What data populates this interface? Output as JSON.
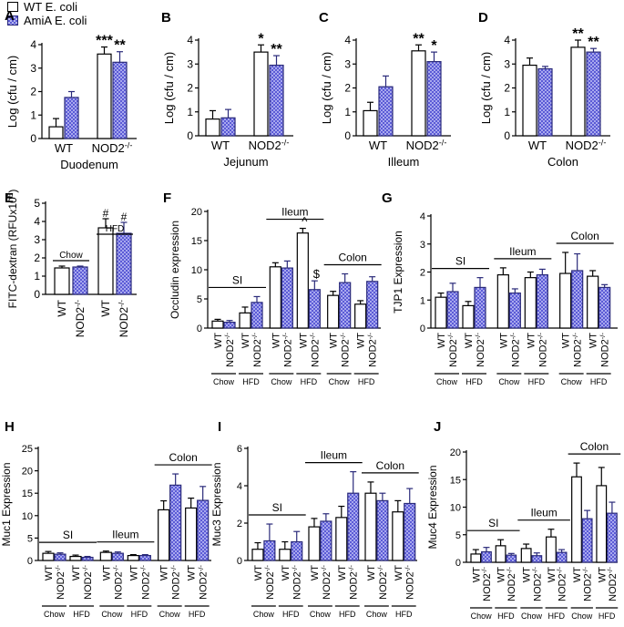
{
  "legend": {
    "wt_label": "WT E. coli",
    "amia_label": "AmiA E. coli"
  },
  "colors": {
    "wt_fill": "#ffffff",
    "amia_fill": "#5b5bd6",
    "amia_stroke": "#2a2a7a",
    "axis": "#000000"
  },
  "chart_data": [
    {
      "id": "A",
      "panel_label": "A",
      "type": "bar",
      "xlabel": "Duodenum",
      "ylabel": "Log (cfu / cm)",
      "ylim": [
        0,
        4
      ],
      "yticks": [
        "0",
        "1",
        "2",
        "3",
        "4"
      ],
      "categories": [
        "WT",
        "NOD2-/-"
      ],
      "series_names": [
        "WT E. coli",
        "AmiA E. coli"
      ],
      "values": [
        [
          0.5,
          1.75
        ],
        [
          3.6,
          3.25
        ]
      ],
      "errors": [
        [
          0.35,
          0.25
        ],
        [
          0.3,
          0.45
        ]
      ],
      "marks": [
        [
          "",
          ""
        ],
        [
          "***",
          "**"
        ]
      ]
    },
    {
      "id": "B",
      "panel_label": "B",
      "type": "bar",
      "xlabel": "Jejunum",
      "ylabel": "Log (cfu / cm)",
      "ylim": [
        0,
        4
      ],
      "yticks": [
        "0",
        "1",
        "2",
        "3",
        "4"
      ],
      "categories": [
        "WT",
        "NOD2-/-"
      ],
      "series_names": [
        "WT E. coli",
        "AmiA E. coli"
      ],
      "values": [
        [
          0.7,
          0.75
        ],
        [
          3.5,
          2.95
        ]
      ],
      "errors": [
        [
          0.35,
          0.35
        ],
        [
          0.3,
          0.4
        ]
      ],
      "marks": [
        [
          "",
          ""
        ],
        [
          "*",
          "**"
        ]
      ]
    },
    {
      "id": "C",
      "panel_label": "C",
      "type": "bar",
      "xlabel": "Illeum",
      "ylabel": "Log (cfu / cm)",
      "ylim": [
        0,
        4
      ],
      "yticks": [
        "0",
        "1",
        "2",
        "3",
        "4"
      ],
      "categories": [
        "WT",
        "NOD2-/-"
      ],
      "series_names": [
        "WT E. coli",
        "AmiA E. coli"
      ],
      "values": [
        [
          1.05,
          2.05
        ],
        [
          3.55,
          3.1
        ]
      ],
      "errors": [
        [
          0.35,
          0.45
        ],
        [
          0.25,
          0.4
        ]
      ],
      "marks": [
        [
          "",
          ""
        ],
        [
          "**",
          "*"
        ]
      ]
    },
    {
      "id": "D",
      "panel_label": "D",
      "type": "bar",
      "xlabel": "Colon",
      "ylabel": "Log (cfu / cm)",
      "ylim": [
        0,
        4
      ],
      "yticks": [
        "0",
        "1",
        "2",
        "3",
        "4"
      ],
      "categories": [
        "WT",
        "NOD2-/-"
      ],
      "series_names": [
        "WT E. coli",
        "AmiA E. coli"
      ],
      "values": [
        [
          2.95,
          2.8
        ],
        [
          3.7,
          3.5
        ]
      ],
      "errors": [
        [
          0.3,
          0.1
        ],
        [
          0.3,
          0.15
        ]
      ],
      "marks": [
        [
          "",
          ""
        ],
        [
          "**",
          "**"
        ]
      ]
    },
    {
      "id": "E",
      "panel_label": "E",
      "type": "bar",
      "ylabel": "FITC-dextran (RFUx10^5)",
      "ylim": [
        0,
        5
      ],
      "yticks": [
        "0",
        "1",
        "2",
        "3",
        "4",
        "5"
      ],
      "categories": [
        "WT",
        "NOD2-/-",
        "WT",
        "NOD2-/-"
      ],
      "groups": [
        {
          "label": "Chow",
          "members": [
            0,
            1
          ]
        },
        {
          "label": "HFD",
          "members": [
            2,
            3
          ]
        }
      ],
      "values": [
        1.45,
        1.5,
        3.65,
        3.35
      ],
      "errors": [
        0.1,
        0.05,
        0.5,
        0.6
      ],
      "bar_style": [
        "wt",
        "ami",
        "wt",
        "ami"
      ],
      "marks": [
        "",
        "",
        "#",
        "#"
      ]
    },
    {
      "id": "F",
      "panel_label": "F",
      "type": "bar",
      "ylabel": "Occludin expression",
      "ylim": [
        0,
        20
      ],
      "yticks": [
        "0",
        "5",
        "10",
        "15",
        "20"
      ],
      "regions": [
        "SI",
        "Ileum",
        "Colon"
      ],
      "diets": [
        "Chow",
        "HFD"
      ],
      "bar_labels": [
        "WT",
        "NOD2-/-",
        "WT",
        "NOD2-/-"
      ],
      "values": [
        [
          1.2,
          1.0,
          2.6,
          4.4
        ],
        [
          10.5,
          10.3,
          16.3,
          6.6
        ],
        [
          5.6,
          7.8,
          4.1,
          8.0
        ]
      ],
      "errors": [
        [
          0.3,
          0.3,
          1.0,
          1.0
        ],
        [
          0.7,
          1.2,
          0.8,
          1.5
        ],
        [
          0.7,
          1.5,
          0.6,
          0.8
        ]
      ],
      "marks": [
        [
          "",
          "",
          "",
          ""
        ],
        [
          "",
          "",
          "^",
          "$"
        ],
        [
          "",
          "",
          "",
          ""
        ]
      ]
    },
    {
      "id": "G",
      "panel_label": "G",
      "type": "bar",
      "ylabel": "TJP1 Expression",
      "ylim": [
        0,
        4
      ],
      "yticks": [
        "0",
        "1",
        "2",
        "3",
        "4"
      ],
      "regions": [
        "SI",
        "Ileum",
        "Colon"
      ],
      "diets": [
        "Chow",
        "HFD"
      ],
      "bar_labels": [
        "WT",
        "NOD2-/-",
        "WT",
        "NOD2-/-"
      ],
      "values": [
        [
          1.1,
          1.3,
          0.8,
          1.45
        ],
        [
          1.9,
          1.25,
          1.8,
          1.9
        ],
        [
          1.95,
          2.05,
          1.85,
          1.45
        ]
      ],
      "errors": [
        [
          0.15,
          0.3,
          0.15,
          0.35
        ],
        [
          0.25,
          0.15,
          0.2,
          0.2
        ],
        [
          0.75,
          0.6,
          0.2,
          0.1
        ]
      ],
      "marks": [
        [
          "",
          "",
          "",
          ""
        ],
        [
          "",
          "",
          "",
          ""
        ],
        [
          "",
          "",
          "",
          ""
        ]
      ]
    },
    {
      "id": "H",
      "panel_label": "H",
      "type": "bar",
      "ylabel": "Muc1 Expression",
      "ylim": [
        0,
        25
      ],
      "yticks": [
        "0",
        "5",
        "10",
        "15",
        "20",
        "25"
      ],
      "regions": [
        "SI",
        "Ileum",
        "Colon"
      ],
      "diets": [
        "Chow",
        "HFD"
      ],
      "bar_labels": [
        "WT",
        "NOD2-/-",
        "WT",
        "NOD2-/-"
      ],
      "values": [
        [
          1.6,
          1.4,
          0.9,
          0.7
        ],
        [
          1.8,
          1.6,
          1.1,
          1.1
        ],
        [
          11.3,
          16.8,
          11.7,
          13.4
        ]
      ],
      "errors": [
        [
          0.4,
          0.3,
          0.3,
          0.2
        ],
        [
          0.3,
          0.3,
          0.2,
          0.2
        ],
        [
          2.0,
          2.5,
          2.2,
          3.1
        ]
      ],
      "marks": [
        [
          "",
          "",
          "",
          ""
        ],
        [
          "",
          "",
          "",
          ""
        ],
        [
          "",
          "",
          "",
          ""
        ]
      ]
    },
    {
      "id": "I",
      "panel_label": "I",
      "type": "bar",
      "ylabel": "Muc3 Expression",
      "ylim": [
        0,
        6
      ],
      "yticks": [
        "0",
        "2",
        "4",
        "6"
      ],
      "regions": [
        "SI",
        "Ileum",
        "Colon"
      ],
      "diets": [
        "Chow",
        "HFD"
      ],
      "bar_labels": [
        "WT",
        "NOD2-/-",
        "WT",
        "NOD2-/-"
      ],
      "values": [
        [
          0.6,
          1.05,
          0.6,
          1.0
        ],
        [
          1.8,
          2.1,
          2.3,
          3.6
        ],
        [
          3.6,
          3.2,
          2.6,
          3.05
        ]
      ],
      "errors": [
        [
          0.35,
          0.9,
          0.4,
          0.55
        ],
        [
          0.45,
          0.4,
          0.6,
          1.15
        ],
        [
          0.6,
          0.4,
          0.6,
          0.8
        ]
      ],
      "marks": [
        [
          "",
          "",
          "",
          ""
        ],
        [
          "",
          "",
          "",
          ""
        ],
        [
          "",
          "",
          "",
          ""
        ]
      ]
    },
    {
      "id": "J",
      "panel_label": "J",
      "type": "bar",
      "ylabel": "Muc4 Expression",
      "ylim": [
        0,
        20
      ],
      "yticks": [
        "0",
        "5",
        "10",
        "15",
        "20"
      ],
      "regions": [
        "SI",
        "Ileum",
        "Colon"
      ],
      "diets": [
        "Chow",
        "HFD"
      ],
      "bar_labels": [
        "WT",
        "NOD2-/-",
        "WT",
        "NOD2-/-"
      ],
      "values": [
        [
          1.5,
          1.9,
          3.0,
          1.3
        ],
        [
          2.5,
          1.2,
          4.6,
          1.8
        ],
        [
          15.5,
          7.9,
          13.9,
          8.9
        ]
      ],
      "errors": [
        [
          0.8,
          0.8,
          1.1,
          0.3
        ],
        [
          0.8,
          0.5,
          1.4,
          0.5
        ],
        [
          2.5,
          1.5,
          3.3,
          2.0
        ]
      ],
      "marks": [
        [
          "",
          "",
          "",
          ""
        ],
        [
          "",
          "",
          "",
          ""
        ],
        [
          "",
          "",
          "",
          ""
        ]
      ]
    }
  ]
}
